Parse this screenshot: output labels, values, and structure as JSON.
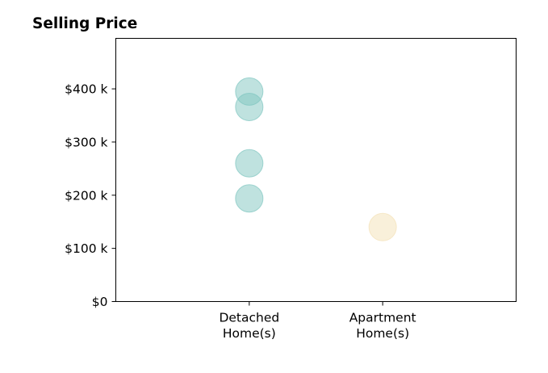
{
  "chart_data": {
    "type": "scatter",
    "title": "Selling Price",
    "xlabel": "",
    "ylabel": "",
    "categories": [
      "Detached Home(s)",
      "Apartment Home(s)"
    ],
    "category_tick_lines": [
      [
        "Detached",
        "Home(s)"
      ],
      [
        "Apartment",
        "Home(s)"
      ]
    ],
    "xlim": [
      0,
      3
    ],
    "ylim": [
      0,
      495000
    ],
    "y_ticks": [
      0,
      100000,
      200000,
      300000,
      400000
    ],
    "y_tick_labels": [
      "$0",
      "$100 k",
      "$200 k",
      "$300 k",
      "$400 k"
    ],
    "grid": false,
    "legend": "none",
    "series": [
      {
        "category": "Detached Home(s)",
        "color": "#7fc6c0",
        "values": [
          395000,
          366000,
          260000,
          194000
        ]
      },
      {
        "category": "Apartment Home(s)",
        "color": "#f3e1b6",
        "values": [
          140000
        ]
      }
    ]
  }
}
